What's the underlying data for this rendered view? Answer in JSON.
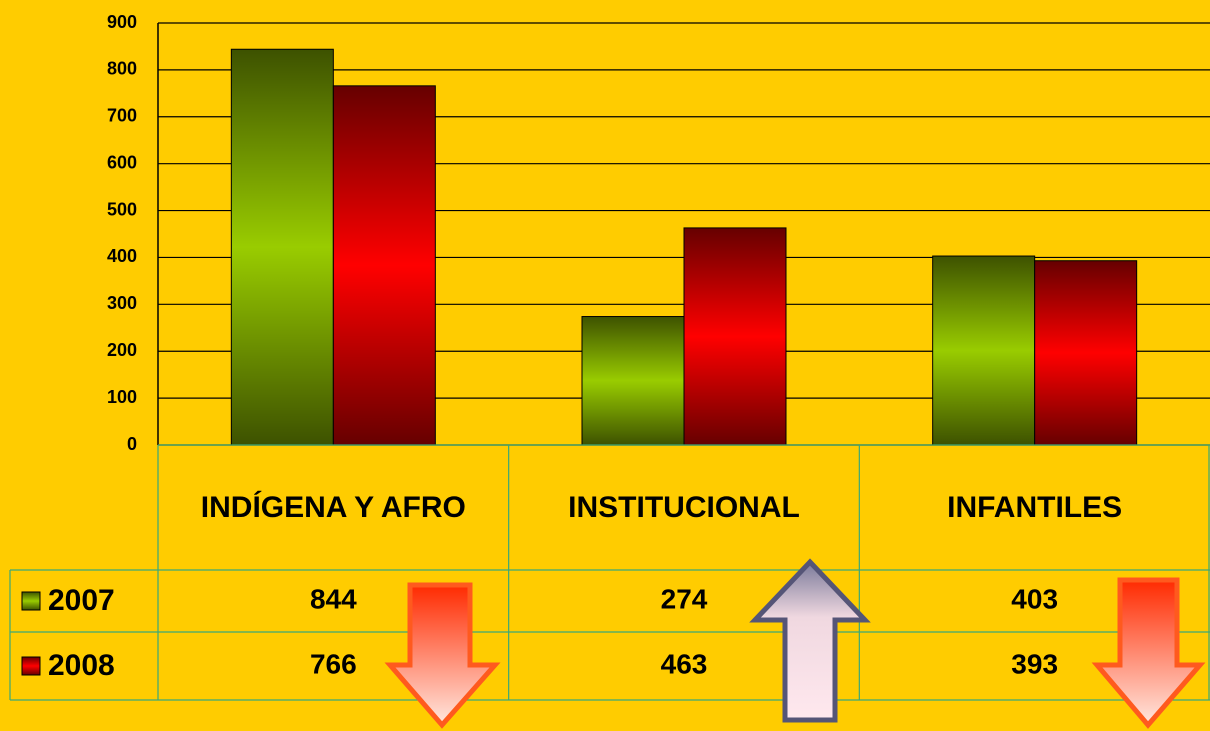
{
  "chart_data": {
    "type": "bar",
    "categories": [
      "INDÍGENA Y AFRO",
      "INSTITUCIONAL",
      "INFANTILES"
    ],
    "series": [
      {
        "name": "2007",
        "color": "#99cc00",
        "values": [
          844,
          274,
          403
        ]
      },
      {
        "name": "2008",
        "color": "#ff0000",
        "values": [
          766,
          463,
          393
        ]
      }
    ],
    "ylim": [
      0,
      900
    ],
    "yticks": [
      0,
      100,
      200,
      300,
      400,
      500,
      600,
      700,
      800,
      900
    ],
    "grid": true
  }
}
